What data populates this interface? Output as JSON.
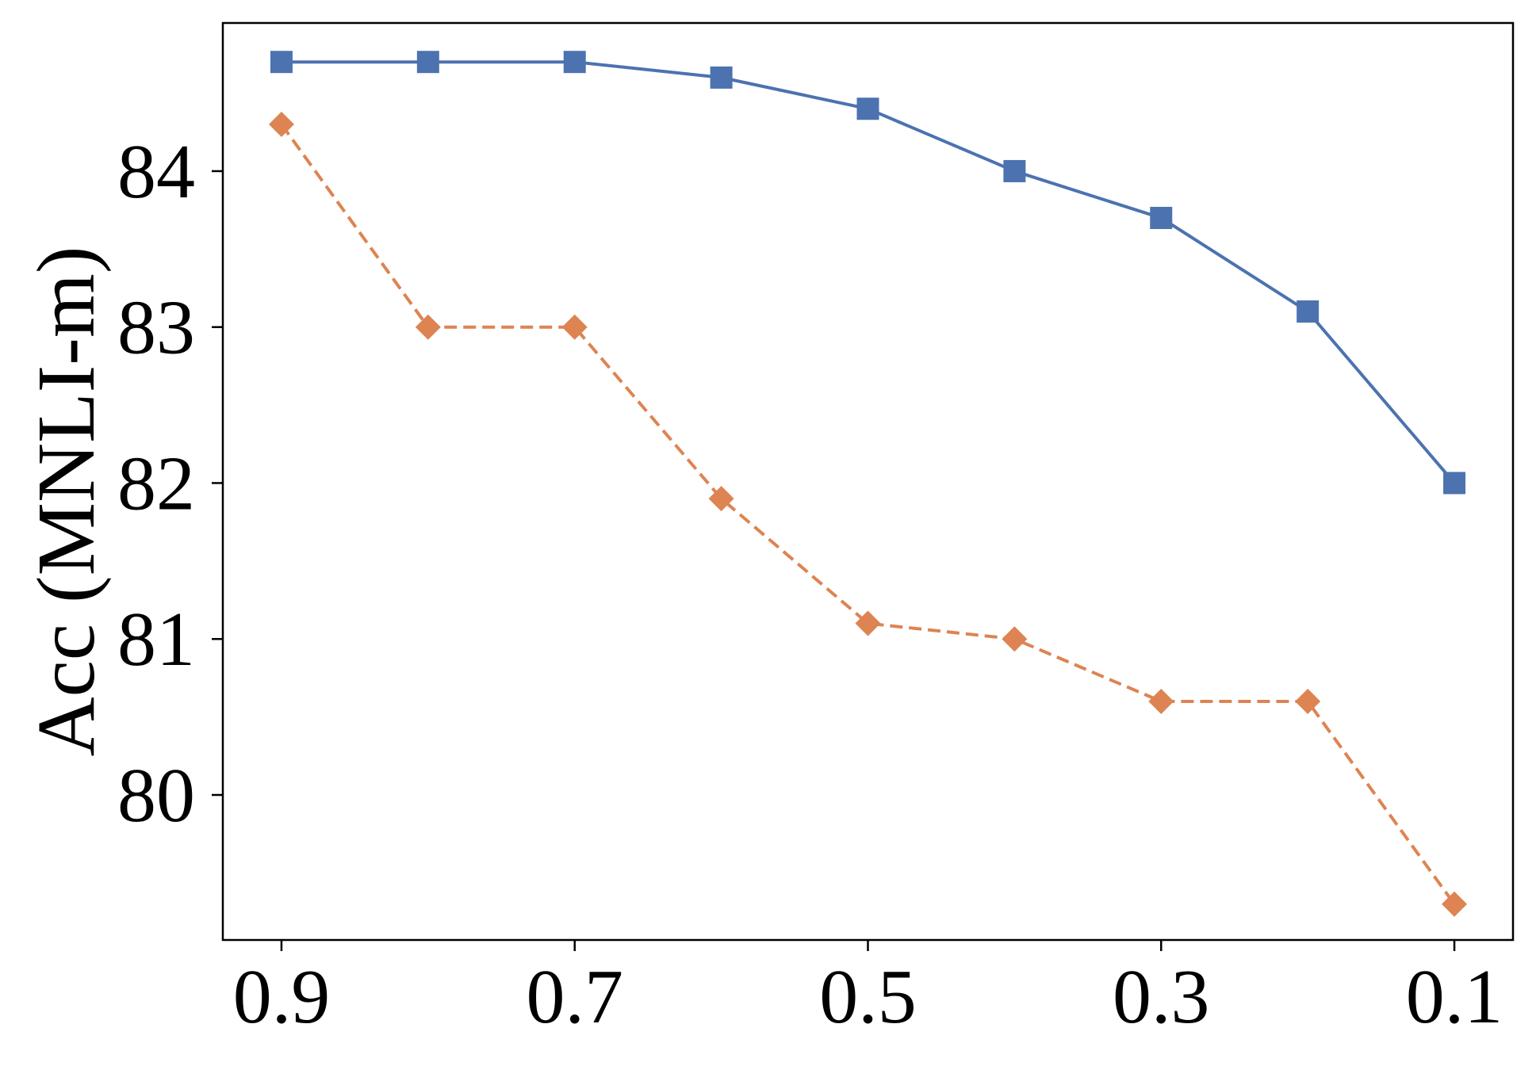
{
  "chart_data": {
    "type": "line",
    "title": "",
    "xlabel": "",
    "ylabel": "Acc (MNLI-m)",
    "x": [
      0.9,
      0.8,
      0.7,
      0.6,
      0.5,
      0.4,
      0.3,
      0.2,
      0.1
    ],
    "x_axis_reversed": true,
    "xlim": [
      0.94,
      0.06
    ],
    "ylim": [
      79.07,
      84.95
    ],
    "xticks": [
      0.9,
      0.7,
      0.5,
      0.3,
      0.1
    ],
    "xtick_labels": [
      "0.9",
      "0.7",
      "0.5",
      "0.3",
      "0.1"
    ],
    "yticks": [
      80,
      81,
      82,
      83,
      84
    ],
    "ytick_labels": [
      "80",
      "81",
      "82",
      "83",
      "84"
    ],
    "grid": false,
    "legend": "none",
    "series": [
      {
        "values": [
          84.7,
          84.7,
          84.7,
          84.6,
          84.4,
          84.0,
          83.7,
          83.1,
          82.0
        ],
        "color": "#4c72b0",
        "line_style": "solid",
        "marker": "square"
      },
      {
        "values": [
          84.3,
          83.0,
          83.0,
          81.9,
          81.1,
          81.0,
          80.6,
          80.6,
          79.3
        ],
        "color": "#dd8452",
        "line_style": "dashed",
        "marker": "diamond"
      }
    ]
  }
}
